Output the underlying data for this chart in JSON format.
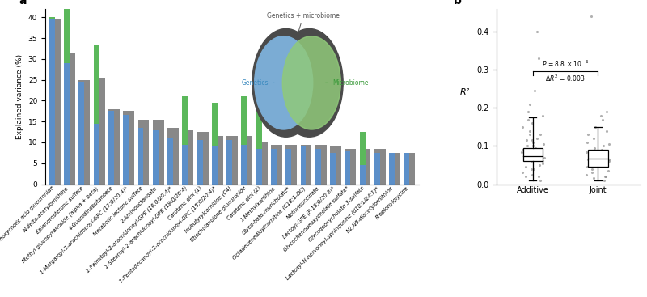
{
  "categories": [
    "Deoxycholic acid glucuronide",
    "N-delta-acetylornithine",
    "Epiandrosterone sulfate",
    "Methyl glucopyranoside (alpha + beta)",
    "4-Guanidinobutanoate",
    "1-Margaroyl-2-arachidonoyl-GPC (17:0/20:4)*",
    "Metabolic lactone sulfate",
    "2-Aminooctanoate",
    "1-Palmitoyl-2-arachidonoyl-GPE (16:0/20:4)*",
    "1-Stearoyl-2-arachidonoyl-GPE (18:0/20:4)",
    "Carotene diol (1)",
    "1-Pentadecanoyl-2-arachidonoyl-GPC (15:0/20:4)*",
    "Isobutyrylcarnitine (C4)",
    "Etiocholanolone glucuronide",
    "Carotene diol (2)",
    "1-Methylxanthine",
    "Glyco-beta-muricholate*",
    "Octadecenedioylcarnitine (C18:1-DC)",
    "Methylsuccinate",
    "Lactoyl-GPE (P-18:0/20:3)*",
    "Glycochenodeoxycholate sulfate*",
    "Glycodeoxycholate 3-sulfate",
    "Lactosyl-N-nervonoyl-sphingosine (d18:1/24:1)*",
    "N2,N5-diacetylornithine",
    "Propionylglycine"
  ],
  "genetics_values": [
    39.5,
    29.0,
    24.5,
    14.5,
    17.5,
    16.5,
    13.5,
    13.0,
    11.0,
    9.5,
    10.5,
    9.0,
    10.5,
    9.5,
    8.5,
    8.5,
    8.5,
    9.0,
    8.5,
    7.5,
    8.0,
    4.5,
    7.5,
    7.5,
    7.5
  ],
  "microbiome_values": [
    0.5,
    33.5,
    0,
    19.0,
    0,
    0,
    0,
    0,
    0,
    11.5,
    0,
    10.5,
    0,
    11.5,
    9.5,
    0,
    0,
    0,
    0,
    0,
    0,
    8.0,
    0,
    0,
    0
  ],
  "total_values": [
    39.5,
    31.5,
    25.0,
    25.5,
    18.0,
    17.5,
    15.5,
    15.5,
    13.5,
    13.0,
    12.5,
    11.5,
    11.5,
    11.5,
    10.0,
    9.5,
    9.5,
    9.5,
    9.5,
    9.0,
    8.5,
    8.5,
    8.5,
    7.5,
    7.5
  ],
  "bar_color_genetics": "#5b8fc9",
  "bar_color_microbiome": "#5bb85b",
  "bar_color_total": "#888888",
  "ylabel": "Explained variance (%)",
  "ylim": [
    0,
    42
  ],
  "yticks": [
    0,
    5,
    10,
    15,
    20,
    25,
    30,
    35,
    40
  ],
  "panel_a_label": "a",
  "panel_b_label": "b",
  "venn_genetics_color": "#7bacd4",
  "venn_microbiome_color": "#90c97a",
  "venn_overlap_color": "#6ab87a",
  "venn_outline_color": "#4a4a4a",
  "venn_text_genetics": "Genetics",
  "venn_text_microbiome": "Microbiome",
  "venn_text_combined": "Genetics + microbiome",
  "boxplot_additive_median": 0.073,
  "boxplot_additive_q1": 0.06,
  "boxplot_additive_q3": 0.095,
  "boxplot_additive_whisker_low": 0.01,
  "boxplot_additive_whisker_high": 0.175,
  "boxplot_joint_median": 0.067,
  "boxplot_joint_q1": 0.045,
  "boxplot_joint_q3": 0.09,
  "boxplot_joint_whisker_low": 0.01,
  "boxplot_joint_whisker_high": 0.15,
  "additive_scatter": [
    0.03,
    0.05,
    0.06,
    0.065,
    0.07,
    0.075,
    0.08,
    0.09,
    0.1,
    0.11,
    0.12,
    0.13,
    0.14,
    0.15,
    0.17,
    0.18,
    0.02,
    0.04,
    0.055,
    0.085,
    0.095,
    0.105,
    0.115,
    0.04,
    0.06,
    0.08,
    0.1,
    0.33,
    0.4,
    0.025,
    0.045,
    0.115,
    0.13,
    0.16,
    0.21,
    0.01,
    0.02,
    0.19,
    0.245
  ],
  "joint_scatter": [
    0.02,
    0.04,
    0.05,
    0.06,
    0.065,
    0.07,
    0.075,
    0.08,
    0.09,
    0.1,
    0.11,
    0.12,
    0.13,
    0.14,
    0.15,
    0.17,
    0.03,
    0.055,
    0.085,
    0.095,
    0.105,
    0.44,
    0.015,
    0.035,
    0.045,
    0.065,
    0.18,
    0.19,
    0.025,
    0.01,
    0.02
  ],
  "boxplot_ylabel": "R²",
  "boxplot_ylim": [
    0,
    0.46
  ],
  "boxplot_yticks": [
    0,
    0.1,
    0.2,
    0.3,
    0.4
  ]
}
